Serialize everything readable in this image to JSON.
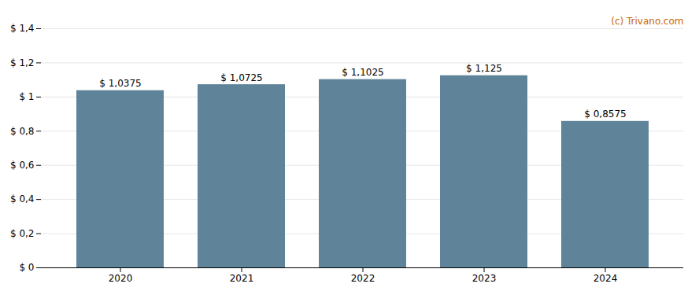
{
  "chart_data": {
    "type": "bar",
    "categories": [
      "2020",
      "2021",
      "2022",
      "2023",
      "2024"
    ],
    "values": [
      1.0375,
      1.0725,
      1.1025,
      1.125,
      0.8575
    ],
    "value_labels": [
      "$ 1,0375",
      "$ 1,0725",
      "$ 1,1025",
      "$ 1,125",
      "$ 0,8575"
    ],
    "data_labels": true,
    "color": "#5f8499",
    "ylim": [
      0,
      1.4
    ],
    "yticks": [
      {
        "value": 0,
        "label": "$ 0"
      },
      {
        "value": 0.2,
        "label": "$ 0,2"
      },
      {
        "value": 0.4,
        "label": "$ 0,4"
      },
      {
        "value": 0.6,
        "label": "$ 0,6"
      },
      {
        "value": 0.8,
        "label": "$ 0,8"
      },
      {
        "value": 1.0,
        "label": "$ 1"
      },
      {
        "value": 1.2,
        "label": "$ 1,2"
      },
      {
        "value": 1.4,
        "label": "$ 1,4"
      }
    ],
    "grid": true,
    "annotations": [
      {
        "text": "(c) Trivano.com",
        "color": "#cc6600"
      }
    ]
  }
}
